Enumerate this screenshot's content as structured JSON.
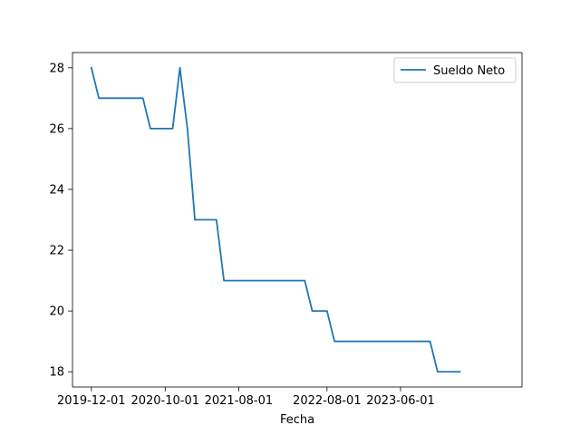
{
  "chart_data": {
    "type": "line",
    "title": "",
    "xlabel": "Fecha",
    "ylabel": "",
    "x_type": "date",
    "xlim": [
      "2019-09-14",
      "2024-10-15"
    ],
    "ylim": [
      17.5,
      28.5
    ],
    "x_ticks": [
      "2019-12-01",
      "2020-10-01",
      "2021-08-01",
      "2022-08-01",
      "2023-06-01"
    ],
    "x_tick_labels": [
      "2019-12-01",
      "2020-10-01",
      "2021-08-01",
      "2022-08-01",
      "2023-06-01"
    ],
    "y_ticks": [
      18,
      20,
      22,
      24,
      26,
      28
    ],
    "y_tick_labels": [
      "18",
      "20",
      "22",
      "24",
      "26",
      "28"
    ],
    "grid": false,
    "legend_position": "top-right",
    "series": [
      {
        "name": "Sueldo Neto",
        "color": "#1f77b4",
        "points": [
          {
            "x": "2019-12-01",
            "y": 28
          },
          {
            "x": "2020-01-01",
            "y": 27
          },
          {
            "x": "2020-07-01",
            "y": 27
          },
          {
            "x": "2020-08-01",
            "y": 26
          },
          {
            "x": "2020-11-01",
            "y": 26
          },
          {
            "x": "2020-12-01",
            "y": 28
          },
          {
            "x": "2021-01-01",
            "y": 26
          },
          {
            "x": "2021-02-01",
            "y": 23
          },
          {
            "x": "2021-05-01",
            "y": 23
          },
          {
            "x": "2021-06-01",
            "y": 21
          },
          {
            "x": "2022-05-01",
            "y": 21
          },
          {
            "x": "2022-06-01",
            "y": 20
          },
          {
            "x": "2022-08-01",
            "y": 20
          },
          {
            "x": "2022-09-01",
            "y": 19
          },
          {
            "x": "2023-10-01",
            "y": 19
          },
          {
            "x": "2023-11-01",
            "y": 18
          },
          {
            "x": "2024-02-01",
            "y": 18
          }
        ]
      }
    ]
  }
}
